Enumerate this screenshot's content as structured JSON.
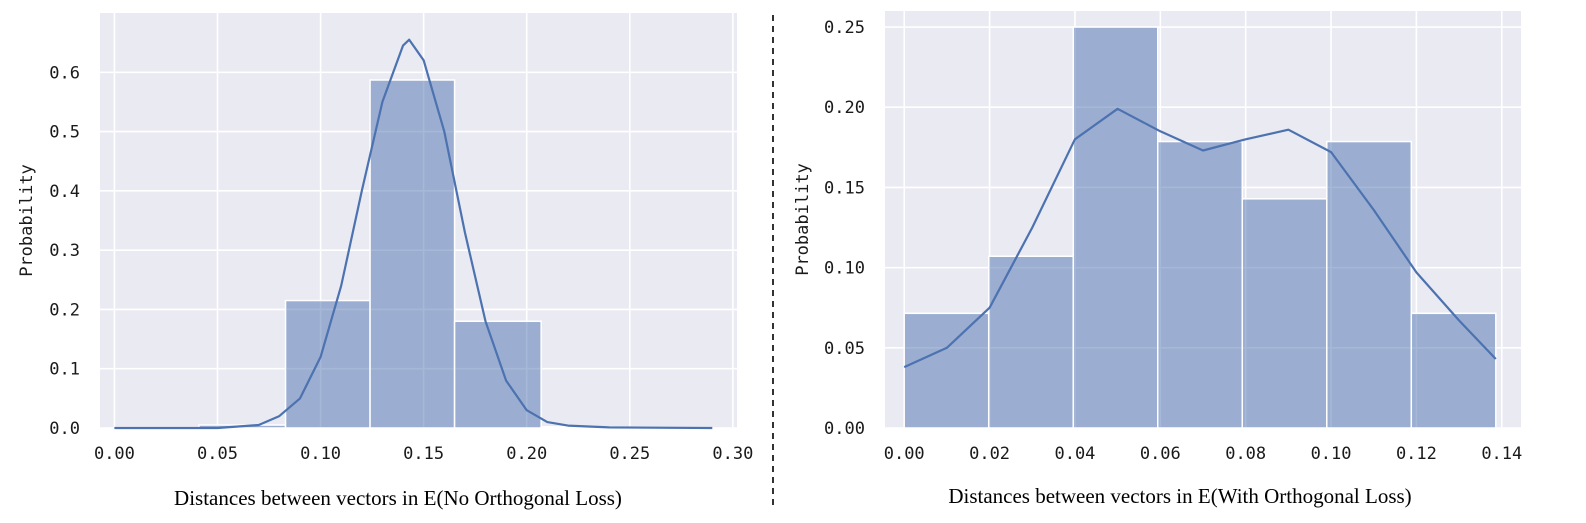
{
  "colors": {
    "plot_background": "#eaeaf2",
    "grid": "#ffffff",
    "bar_fill": "#4c72b0",
    "bar_fill_opacity": 0.5,
    "bar_edge": "#ffffff",
    "kde_line": "#4c72b0",
    "divider": "#000000"
  },
  "chart_data": [
    {
      "type": "bar",
      "variant": "histogram-with-kde",
      "title": "",
      "xlabel": "Distances between vectors in E(No Orthogonal Loss)",
      "ylabel": "Probability",
      "xlim": [
        -0.007,
        0.302
      ],
      "ylim": [
        0,
        0.7
      ],
      "xticks": [
        0.0,
        0.05,
        0.1,
        0.15,
        0.2,
        0.25,
        0.3
      ],
      "xtick_labels": [
        "0.00",
        "0.05",
        "0.10",
        "0.15",
        "0.20",
        "0.25",
        "0.30"
      ],
      "yticks": [
        0.0,
        0.1,
        0.2,
        0.3,
        0.4,
        0.5,
        0.6
      ],
      "ytick_labels": [
        "0.0",
        "0.1",
        "0.2",
        "0.3",
        "0.4",
        "0.5",
        "0.6"
      ],
      "grid": true,
      "bins": [
        {
          "x0": 0.0,
          "x1": 0.041,
          "value": 0.001
        },
        {
          "x0": 0.041,
          "x1": 0.083,
          "value": 0.005
        },
        {
          "x0": 0.083,
          "x1": 0.124,
          "value": 0.215
        },
        {
          "x0": 0.124,
          "x1": 0.165,
          "value": 0.587
        },
        {
          "x0": 0.165,
          "x1": 0.207,
          "value": 0.18
        },
        {
          "x0": 0.207,
          "x1": 0.248,
          "value": 0.002
        },
        {
          "x0": 0.248,
          "x1": 0.289,
          "value": 0.001
        }
      ],
      "kde": {
        "x": [
          0.0,
          0.05,
          0.07,
          0.08,
          0.09,
          0.1,
          0.11,
          0.12,
          0.13,
          0.14,
          0.143,
          0.15,
          0.16,
          0.17,
          0.18,
          0.19,
          0.2,
          0.21,
          0.22,
          0.24,
          0.29
        ],
        "y": [
          0.0,
          0.0,
          0.005,
          0.02,
          0.05,
          0.12,
          0.24,
          0.4,
          0.55,
          0.645,
          0.655,
          0.62,
          0.5,
          0.33,
          0.18,
          0.08,
          0.03,
          0.01,
          0.004,
          0.001,
          0.0
        ]
      }
    },
    {
      "type": "bar",
      "variant": "histogram-with-kde",
      "title": "",
      "xlabel": "Distances between vectors in E(With Orthogonal Loss)",
      "ylabel": "Probability",
      "xlim": [
        -0.0045,
        0.1445
      ],
      "ylim": [
        0,
        0.26
      ],
      "xticks": [
        0.0,
        0.02,
        0.04,
        0.06,
        0.08,
        0.1,
        0.12,
        0.14
      ],
      "xtick_labels": [
        "0.00",
        "0.02",
        "0.04",
        "0.06",
        "0.08",
        "0.10",
        "0.12",
        "0.14"
      ],
      "yticks": [
        0.0,
        0.05,
        0.1,
        0.15,
        0.2,
        0.25
      ],
      "ytick_labels": [
        "0.00",
        "0.05",
        "0.10",
        "0.15",
        "0.20",
        "0.25"
      ],
      "grid": true,
      "bins": [
        {
          "x0": 0.0,
          "x1": 0.0198,
          "value": 0.0715
        },
        {
          "x0": 0.0198,
          "x1": 0.0396,
          "value": 0.1071
        },
        {
          "x0": 0.0396,
          "x1": 0.0594,
          "value": 0.25
        },
        {
          "x0": 0.0594,
          "x1": 0.0792,
          "value": 0.1786
        },
        {
          "x0": 0.0792,
          "x1": 0.099,
          "value": 0.1429
        },
        {
          "x0": 0.099,
          "x1": 0.1188,
          "value": 0.1786
        },
        {
          "x0": 0.1188,
          "x1": 0.1386,
          "value": 0.0715
        }
      ],
      "kde": {
        "x": [
          0.0,
          0.01,
          0.02,
          0.03,
          0.04,
          0.05,
          0.06,
          0.07,
          0.08,
          0.09,
          0.1,
          0.11,
          0.12,
          0.13,
          0.1386
        ],
        "y": [
          0.038,
          0.05,
          0.075,
          0.125,
          0.18,
          0.199,
          0.185,
          0.173,
          0.18,
          0.186,
          0.172,
          0.136,
          0.097,
          0.067,
          0.043
        ]
      }
    }
  ]
}
